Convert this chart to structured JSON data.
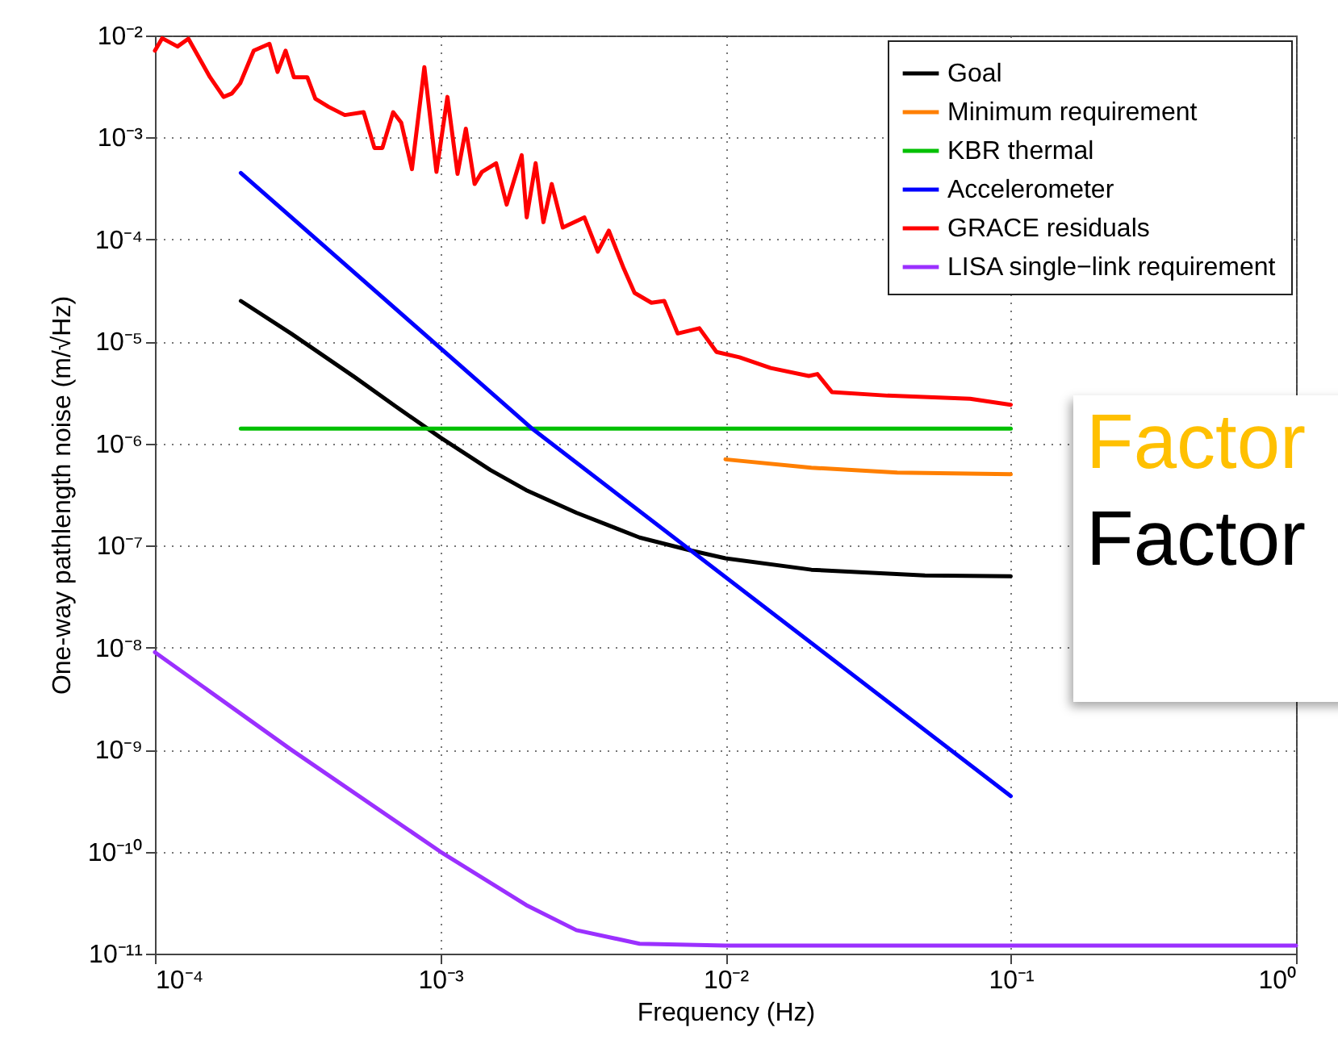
{
  "chart_data": {
    "type": "line",
    "xlabel": "Frequency (Hz)",
    "ylabel": "One-way pathlength noise (m/√Hz)",
    "log": "xy",
    "grid": true,
    "legend": "top right",
    "line_style": "solid",
    "marker": "none",
    "xlim": [
      0.0001,
      1
    ],
    "ylim": [
      1e-11,
      0.01
    ],
    "xticks": [
      {
        "value": 0.0001,
        "label": "10⁻⁴"
      },
      {
        "value": 0.001,
        "label": "10⁻³"
      },
      {
        "value": 0.01,
        "label": "10⁻²"
      },
      {
        "value": 0.1,
        "label": "10⁻¹"
      },
      {
        "value": 1,
        "label": "10⁰"
      }
    ],
    "yticks": [
      {
        "value": 1e-11,
        "label": "10⁻¹¹"
      },
      {
        "value": 1e-10,
        "label": "10⁻¹⁰"
      },
      {
        "value": 1e-09,
        "label": "10⁻⁹"
      },
      {
        "value": 1e-08,
        "label": "10⁻⁸"
      },
      {
        "value": 1e-07,
        "label": "10⁻⁷"
      },
      {
        "value": 1e-06,
        "label": "10⁻⁶"
      },
      {
        "value": 1e-05,
        "label": "10⁻⁵"
      },
      {
        "value": 0.0001,
        "label": "10⁻⁴"
      },
      {
        "value": 0.001,
        "label": "10⁻³"
      },
      {
        "value": 0.01,
        "label": "10⁻²"
      }
    ],
    "annotations": [
      "Factor",
      "Factor"
    ],
    "series": [
      {
        "name": "Goal",
        "color": "#000000",
        "x": [
          0.0002,
          0.0003,
          0.0005,
          0.0007,
          0.001,
          0.0015,
          0.002,
          0.003,
          0.005,
          0.0075,
          0.01,
          0.02,
          0.05,
          0.1
        ],
        "values": [
          2.5e-05,
          1.2e-05,
          4.5e-06,
          2.3e-06,
          1.15e-06,
          5.5e-07,
          3.5e-07,
          2.1e-07,
          1.2e-07,
          9e-08,
          7.5e-08,
          5.8e-08,
          5.1e-08,
          5e-08
        ]
      },
      {
        "name": "Minimum requirement",
        "color": "#ff7f00",
        "x": [
          0.01,
          0.02,
          0.04,
          0.1
        ],
        "values": [
          7e-07,
          5.8e-07,
          5.2e-07,
          5e-07
        ]
      },
      {
        "name": "KBR thermal",
        "color": "#00c000",
        "x": [
          0.0002,
          0.1
        ],
        "values": [
          1.4e-06,
          1.4e-06
        ]
      },
      {
        "name": "Accelerometer",
        "color": "#0000ff",
        "x": [
          0.0002,
          0.0021,
          0.1
        ],
        "values": [
          0.00045,
          1.4e-06,
          3.5e-10
        ]
      },
      {
        "name": "GRACE residuals",
        "color": "#ff0000",
        "x": [
          0.0001,
          0.000106,
          0.00012,
          0.000131,
          0.000156,
          0.000174,
          0.000186,
          0.000199,
          0.000222,
          0.000252,
          0.000269,
          0.000287,
          0.000307,
          0.000342,
          0.000365,
          0.000406,
          0.000463,
          0.000539,
          0.000588,
          0.000627,
          0.000684,
          0.00073,
          0.000796,
          0.00088,
          0.00097,
          0.00106,
          0.00115,
          0.00123,
          0.00132,
          0.0014,
          0.00157,
          0.00171,
          0.00193,
          0.00201,
          0.00216,
          0.0023,
          0.00246,
          0.00269,
          0.0032,
          0.00357,
          0.0039,
          0.0044,
          0.0048,
          0.0055,
          0.0061,
          0.0068,
          0.0081,
          0.0093,
          0.0112,
          0.0144,
          0.0196,
          0.021,
          0.0236,
          0.037,
          0.072,
          0.1
        ],
        "values": [
          0.0071,
          0.0094,
          0.0078,
          0.0093,
          0.0039,
          0.0025,
          0.0027,
          0.0034,
          0.0071,
          0.0083,
          0.0044,
          0.0071,
          0.0039,
          0.0039,
          0.0024,
          0.002,
          0.00166,
          0.00177,
          0.00079,
          0.00079,
          0.00177,
          0.0014,
          0.00049,
          0.0049,
          0.00046,
          0.0025,
          0.00044,
          0.00122,
          0.00035,
          0.00046,
          0.00056,
          0.00022,
          0.00067,
          0.000165,
          0.00056,
          0.000148,
          0.00035,
          0.000131,
          0.000165,
          7.6e-05,
          0.000122,
          5.2e-05,
          3e-05,
          2.4e-05,
          2.5e-05,
          1.2e-05,
          1.35e-05,
          7.9e-06,
          7e-06,
          5.5e-06,
          4.6e-06,
          4.8e-06,
          3.2e-06,
          2.95e-06,
          2.75e-06,
          2.4e-06
        ]
      },
      {
        "name": "LISA single−link requirement",
        "color": "#9b30ff",
        "x": [
          0.0001,
          0.0003,
          0.001,
          0.002,
          0.003,
          0.005,
          0.01,
          0.1,
          1
        ],
        "values": [
          9e-09,
          1e-09,
          1e-10,
          3e-11,
          1.7e-11,
          1.25e-11,
          1.2e-11,
          1.2e-11,
          1.2e-11
        ]
      }
    ]
  }
}
